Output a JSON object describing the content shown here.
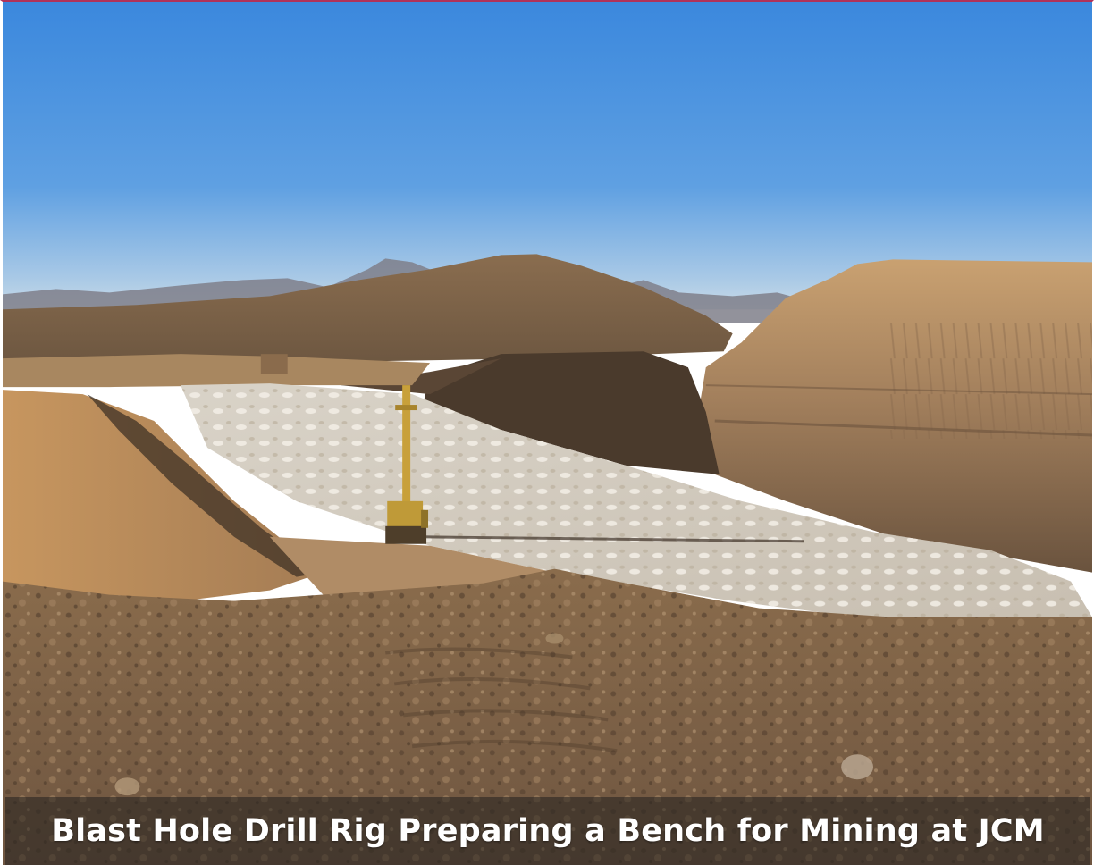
{
  "photo": {
    "caption": "Blast Hole Drill Rig Preparing a Bench for Mining at JCM",
    "scene": "open-pit-mine-bench-with-drill-rig",
    "colors": {
      "sky_top": "#3f8de0",
      "sky_horizon": "#bcd6ea",
      "earth": "#9a7752",
      "bench_white": "#ddd7cc",
      "rig_yellow": "#c9a23a",
      "caption_band": "#28241f"
    }
  }
}
